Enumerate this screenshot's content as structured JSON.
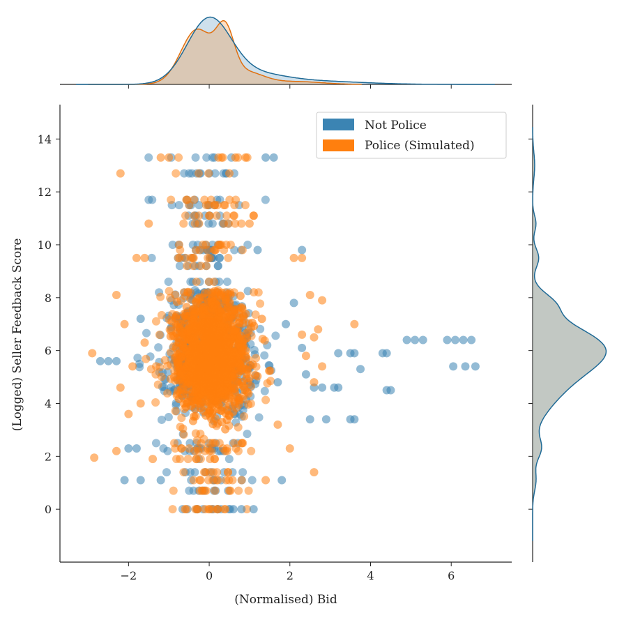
{
  "chart_data": {
    "type": "scatter",
    "subtype": "jointplot with marginal KDE",
    "xlabel": "(Normalised) Bid",
    "ylabel": "(Logged) Seller Feedback Score",
    "xlim": [
      -3.7,
      7.5
    ],
    "ylim": [
      -2.0,
      15.3
    ],
    "xticks": [
      -2,
      0,
      2,
      4,
      6
    ],
    "yticks": [
      0,
      2,
      4,
      6,
      8,
      10,
      12,
      14
    ],
    "xtick_labels": [
      "−2",
      "0",
      "2",
      "4",
      "6"
    ],
    "ytick_labels": [
      "0",
      "2",
      "4",
      "6",
      "8",
      "10",
      "12",
      "14"
    ],
    "legend": {
      "placement": "top-right",
      "entries": [
        "Not Police",
        "Police (Simulated)"
      ]
    },
    "grid": false,
    "series": [
      {
        "name": "Not Police",
        "color": "#3b84b3",
        "marginal_color": "#1f6a96",
        "representative_points": [
          {
            "x": -2.7,
            "y": 5.6
          },
          {
            "x": -2.5,
            "y": 5.6
          },
          {
            "x": -2.3,
            "y": 5.6
          },
          {
            "x": -2.1,
            "y": 1.1
          },
          {
            "x": -1.7,
            "y": 1.1
          },
          {
            "x": -1.2,
            "y": 1.1
          },
          {
            "x": -2.0,
            "y": 2.3
          },
          {
            "x": -1.8,
            "y": 2.3
          },
          {
            "x": -1.7,
            "y": 7.2
          },
          {
            "x": 1.6,
            "y": 13.3
          },
          {
            "x": 1.4,
            "y": 13.3
          },
          {
            "x": 1.2,
            "y": 9.8
          },
          {
            "x": 2.3,
            "y": 9.8
          },
          {
            "x": 2.3,
            "y": 6.1
          },
          {
            "x": 2.6,
            "y": 4.6
          },
          {
            "x": 2.8,
            "y": 4.6
          },
          {
            "x": 3.1,
            "y": 4.6
          },
          {
            "x": 3.2,
            "y": 4.6
          },
          {
            "x": 2.5,
            "y": 3.4
          },
          {
            "x": 2.9,
            "y": 3.4
          },
          {
            "x": 3.5,
            "y": 3.4
          },
          {
            "x": 3.6,
            "y": 3.4
          },
          {
            "x": 3.2,
            "y": 5.9
          },
          {
            "x": 3.5,
            "y": 5.9
          },
          {
            "x": 3.6,
            "y": 5.9
          },
          {
            "x": 3.75,
            "y": 5.3
          },
          {
            "x": 4.3,
            "y": 5.9
          },
          {
            "x": 4.4,
            "y": 5.9
          },
          {
            "x": 4.4,
            "y": 4.5
          },
          {
            "x": 4.5,
            "y": 4.5
          },
          {
            "x": 4.9,
            "y": 6.4
          },
          {
            "x": 5.1,
            "y": 6.4
          },
          {
            "x": 5.3,
            "y": 6.4
          },
          {
            "x": 5.9,
            "y": 6.4
          },
          {
            "x": 6.1,
            "y": 6.4
          },
          {
            "x": 6.3,
            "y": 6.4
          },
          {
            "x": 6.5,
            "y": 6.4
          },
          {
            "x": 6.05,
            "y": 5.4
          },
          {
            "x": 6.35,
            "y": 5.4
          },
          {
            "x": 6.6,
            "y": 5.4
          },
          {
            "x": 1.1,
            "y": 0.0
          },
          {
            "x": 0.8,
            "y": 0.0
          },
          {
            "x": 0.6,
            "y": 0.0
          },
          {
            "x": 1.8,
            "y": 1.1
          },
          {
            "x": 1.9,
            "y": 7.0
          },
          {
            "x": 1.7,
            "y": 4.8
          },
          {
            "x": 2.1,
            "y": 7.8
          },
          {
            "x": 2.4,
            "y": 5.1
          }
        ]
      },
      {
        "name": "Police (Simulated)",
        "color": "#ff7f0e",
        "marginal_color": "#e07010",
        "representative_points": [
          {
            "x": -2.9,
            "y": 5.9
          },
          {
            "x": -2.85,
            "y": 1.95
          },
          {
            "x": -2.3,
            "y": 2.2
          },
          {
            "x": -2.2,
            "y": 12.7
          },
          {
            "x": -2.2,
            "y": 4.6
          },
          {
            "x": -2.3,
            "y": 8.1
          },
          {
            "x": -1.2,
            "y": 13.3
          },
          {
            "x": -1.0,
            "y": 13.3
          },
          {
            "x": -1.5,
            "y": 10.8
          },
          {
            "x": -1.8,
            "y": 9.5
          },
          {
            "x": -1.6,
            "y": 9.5
          },
          {
            "x": 0.5,
            "y": 12.7
          },
          {
            "x": 0.9,
            "y": 13.3
          },
          {
            "x": 0.65,
            "y": 13.3
          },
          {
            "x": 1.1,
            "y": 11.1
          },
          {
            "x": 1.0,
            "y": 10.8
          },
          {
            "x": 2.1,
            "y": 9.5
          },
          {
            "x": 2.3,
            "y": 9.5
          },
          {
            "x": 2.5,
            "y": 8.1
          },
          {
            "x": 2.8,
            "y": 7.9
          },
          {
            "x": 3.6,
            "y": 7.0
          },
          {
            "x": 2.3,
            "y": 6.6
          },
          {
            "x": 2.6,
            "y": 6.5
          },
          {
            "x": 2.7,
            "y": 6.8
          },
          {
            "x": 2.4,
            "y": 5.8
          },
          {
            "x": 2.8,
            "y": 5.4
          },
          {
            "x": 2.6,
            "y": 4.8
          },
          {
            "x": 2.6,
            "y": 1.4
          },
          {
            "x": 2.0,
            "y": 2.3
          },
          {
            "x": 1.7,
            "y": 3.2
          },
          {
            "x": 1.4,
            "y": 1.1
          },
          {
            "x": 0.5,
            "y": 0.7
          },
          {
            "x": -0.6,
            "y": 0.0
          },
          {
            "x": -0.3,
            "y": 0.0
          },
          {
            "x": -0.1,
            "y": 0.0
          },
          {
            "x": 0.2,
            "y": 0.0
          },
          {
            "x": -2.0,
            "y": 3.6
          },
          {
            "x": -1.9,
            "y": 5.4
          },
          {
            "x": -1.7,
            "y": 4.0
          },
          {
            "x": -1.6,
            "y": 6.3
          },
          {
            "x": -2.1,
            "y": 7.0
          },
          {
            "x": -1.4,
            "y": 1.9
          }
        ]
      }
    ],
    "marginal_x": {
      "type": "kde",
      "note_series": [
        "Not Police",
        "Police (Simulated)"
      ]
    },
    "marginal_y": {
      "type": "kde"
    }
  }
}
